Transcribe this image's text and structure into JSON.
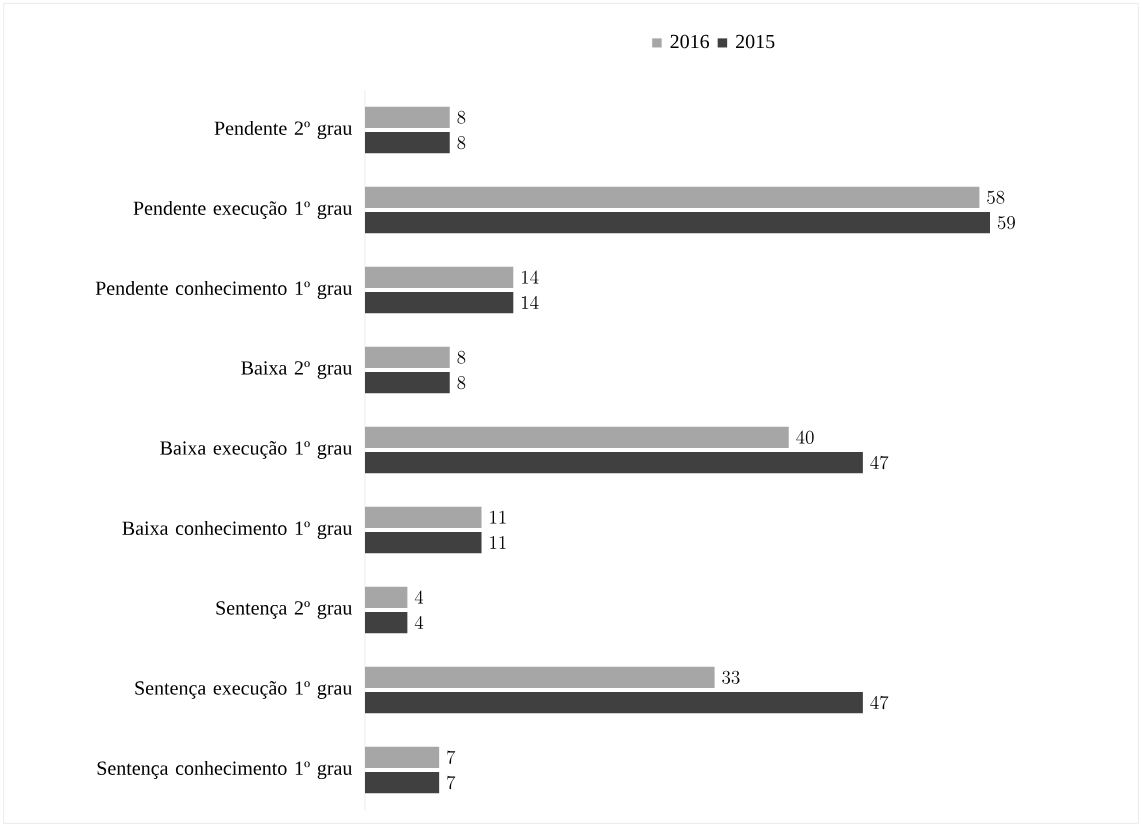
{
  "chart_data": {
    "type": "bar",
    "orientation": "horizontal",
    "categories": [
      "Pendente 2º grau",
      "Pendente execução 1º grau",
      "Pendente conhecimento 1º grau",
      "Baixa 2º grau",
      "Baixa execução 1º grau",
      "Baixa conhecimento 1º grau",
      "Sentença 2º grau",
      "Sentença execução 1º grau",
      "Sentença conhecimento 1º grau"
    ],
    "series": [
      {
        "name": "2016",
        "color": "#a6a6a6",
        "values": [
          8,
          58,
          14,
          8,
          40,
          11,
          4,
          33,
          7
        ]
      },
      {
        "name": "2015",
        "color": "#404040",
        "values": [
          8,
          59,
          14,
          8,
          47,
          11,
          4,
          47,
          7
        ]
      }
    ],
    "data_labels": true,
    "legend": "top"
  }
}
